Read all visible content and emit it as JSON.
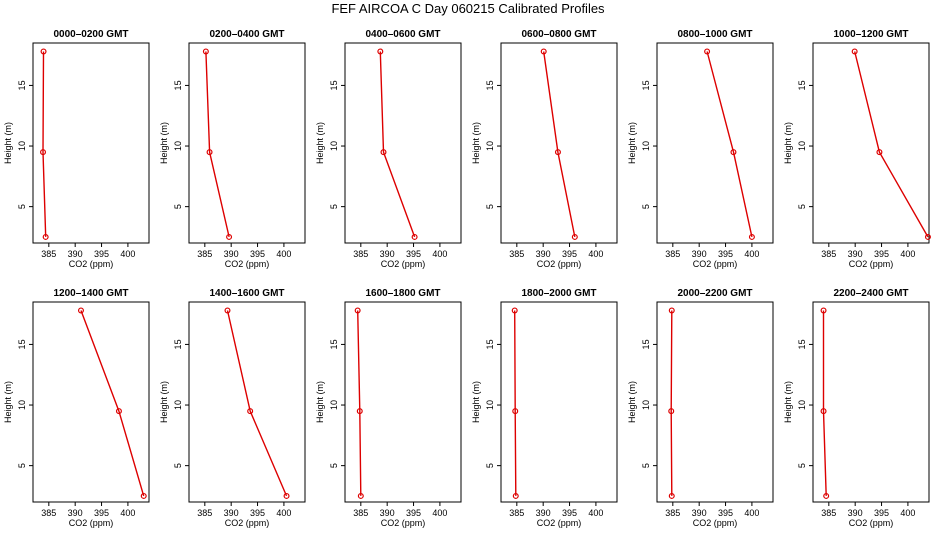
{
  "title": "FEF AIRCOA C  Day 060215  Calibrated Profiles",
  "colors": {
    "line": "#dd0000",
    "axis": "#000000"
  },
  "chart_data": [
    {
      "type": "line",
      "title": "0000–0200 GMT",
      "xlabel": "CO2 (ppm)",
      "ylabel": "Height (m)",
      "xlim": [
        382,
        404
      ],
      "ylim": [
        2,
        18.5
      ],
      "xticks": [
        385,
        390,
        395,
        400
      ],
      "yticks": [
        5,
        10,
        15
      ],
      "grid": false,
      "points": [
        {
          "x": 384.4,
          "y": 2.5
        },
        {
          "x": 383.9,
          "y": 9.5
        },
        {
          "x": 384.0,
          "y": 17.8
        }
      ]
    },
    {
      "type": "line",
      "title": "0200–0400 GMT",
      "xlabel": "CO2 (ppm)",
      "ylabel": "Height (m)",
      "xlim": [
        382,
        404
      ],
      "ylim": [
        2,
        18.5
      ],
      "xticks": [
        385,
        390,
        395,
        400
      ],
      "yticks": [
        5,
        10,
        15
      ],
      "grid": false,
      "points": [
        {
          "x": 389.6,
          "y": 2.5
        },
        {
          "x": 385.9,
          "y": 9.5
        },
        {
          "x": 385.2,
          "y": 17.8
        }
      ]
    },
    {
      "type": "line",
      "title": "0400–0600 GMT",
      "xlabel": "CO2 (ppm)",
      "ylabel": "Height (m)",
      "xlim": [
        382,
        404
      ],
      "ylim": [
        2,
        18.5
      ],
      "xticks": [
        385,
        390,
        395,
        400
      ],
      "yticks": [
        5,
        10,
        15
      ],
      "grid": false,
      "points": [
        {
          "x": 395.2,
          "y": 2.5
        },
        {
          "x": 389.3,
          "y": 9.5
        },
        {
          "x": 388.7,
          "y": 17.8
        }
      ]
    },
    {
      "type": "line",
      "title": "0600–0800 GMT",
      "xlabel": "CO2 (ppm)",
      "ylabel": "Height (m)",
      "xlim": [
        382,
        404
      ],
      "ylim": [
        2,
        18.5
      ],
      "xticks": [
        385,
        390,
        395,
        400
      ],
      "yticks": [
        5,
        10,
        15
      ],
      "grid": false,
      "points": [
        {
          "x": 396.0,
          "y": 2.5
        },
        {
          "x": 392.8,
          "y": 9.5
        },
        {
          "x": 390.1,
          "y": 17.8
        }
      ]
    },
    {
      "type": "line",
      "title": "0800–1000 GMT",
      "xlabel": "CO2 (ppm)",
      "ylabel": "Height (m)",
      "xlim": [
        382,
        404
      ],
      "ylim": [
        2,
        18.5
      ],
      "xticks": [
        385,
        390,
        395,
        400
      ],
      "yticks": [
        5,
        10,
        15
      ],
      "grid": false,
      "points": [
        {
          "x": 400.0,
          "y": 2.5
        },
        {
          "x": 396.5,
          "y": 9.5
        },
        {
          "x": 391.5,
          "y": 17.8
        }
      ]
    },
    {
      "type": "line",
      "title": "1000–1200 GMT",
      "xlabel": "CO2 (ppm)",
      "ylabel": "Height (m)",
      "xlim": [
        382,
        404
      ],
      "ylim": [
        2,
        18.5
      ],
      "xticks": [
        385,
        390,
        395,
        400
      ],
      "yticks": [
        5,
        10,
        15
      ],
      "grid": false,
      "points": [
        {
          "x": 403.8,
          "y": 2.5
        },
        {
          "x": 394.6,
          "y": 9.5
        },
        {
          "x": 389.9,
          "y": 17.8
        }
      ]
    },
    {
      "type": "line",
      "title": "1200–1400 GMT",
      "xlabel": "CO2 (ppm)",
      "ylabel": "Height (m)",
      "xlim": [
        382,
        404
      ],
      "ylim": [
        2,
        18.5
      ],
      "xticks": [
        385,
        390,
        395,
        400
      ],
      "yticks": [
        5,
        10,
        15
      ],
      "grid": false,
      "points": [
        {
          "x": 403.0,
          "y": 2.5
        },
        {
          "x": 398.3,
          "y": 9.5
        },
        {
          "x": 391.1,
          "y": 17.8
        }
      ]
    },
    {
      "type": "line",
      "title": "1400–1600 GMT",
      "xlabel": "CO2 (ppm)",
      "ylabel": "Height (m)",
      "xlim": [
        382,
        404
      ],
      "ylim": [
        2,
        18.5
      ],
      "xticks": [
        385,
        390,
        395,
        400
      ],
      "yticks": [
        5,
        10,
        15
      ],
      "grid": false,
      "points": [
        {
          "x": 400.5,
          "y": 2.5
        },
        {
          "x": 393.6,
          "y": 9.5
        },
        {
          "x": 389.3,
          "y": 17.8
        }
      ]
    },
    {
      "type": "line",
      "title": "1600–1800 GMT",
      "xlabel": "CO2 (ppm)",
      "ylabel": "Height (m)",
      "xlim": [
        382,
        404
      ],
      "ylim": [
        2,
        18.5
      ],
      "xticks": [
        385,
        390,
        395,
        400
      ],
      "yticks": [
        5,
        10,
        15
      ],
      "grid": false,
      "points": [
        {
          "x": 385.0,
          "y": 2.5
        },
        {
          "x": 384.8,
          "y": 9.5
        },
        {
          "x": 384.4,
          "y": 17.8
        }
      ]
    },
    {
      "type": "line",
      "title": "1800–2000 GMT",
      "xlabel": "CO2 (ppm)",
      "ylabel": "Height (m)",
      "xlim": [
        382,
        404
      ],
      "ylim": [
        2,
        18.5
      ],
      "xticks": [
        385,
        390,
        395,
        400
      ],
      "yticks": [
        5,
        10,
        15
      ],
      "grid": false,
      "points": [
        {
          "x": 384.8,
          "y": 2.5
        },
        {
          "x": 384.7,
          "y": 9.5
        },
        {
          "x": 384.6,
          "y": 17.8
        }
      ]
    },
    {
      "type": "line",
      "title": "2000–2200 GMT",
      "xlabel": "CO2 (ppm)",
      "ylabel": "Height (m)",
      "xlim": [
        382,
        404
      ],
      "ylim": [
        2,
        18.5
      ],
      "xticks": [
        385,
        390,
        395,
        400
      ],
      "yticks": [
        5,
        10,
        15
      ],
      "grid": false,
      "points": [
        {
          "x": 384.8,
          "y": 2.5
        },
        {
          "x": 384.7,
          "y": 9.5
        },
        {
          "x": 384.8,
          "y": 17.8
        }
      ]
    },
    {
      "type": "line",
      "title": "2200–2400 GMT",
      "xlabel": "CO2 (ppm)",
      "ylabel": "Height (m)",
      "xlim": [
        382,
        404
      ],
      "ylim": [
        2,
        18.5
      ],
      "xticks": [
        385,
        390,
        395,
        400
      ],
      "yticks": [
        5,
        10,
        15
      ],
      "grid": false,
      "points": [
        {
          "x": 384.5,
          "y": 2.5
        },
        {
          "x": 384.0,
          "y": 9.5
        },
        {
          "x": 384.0,
          "y": 17.8
        }
      ]
    }
  ]
}
